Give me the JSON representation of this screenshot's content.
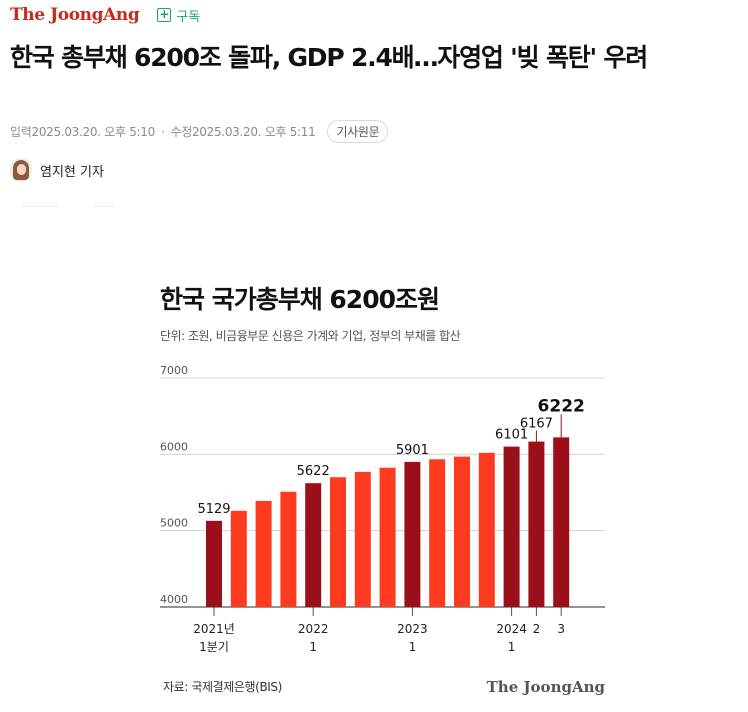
{
  "header": {
    "logo": "The JoongAng",
    "subscribe_label": "구독"
  },
  "article": {
    "title": "한국 총부채 6200조 돌파, GDP 2.4배…자영업 '빚 폭탄' 우려",
    "published": "입력2025.03.20. 오후 5:10",
    "separator": "·",
    "modified": "수정2025.03.20. 오후 5:11",
    "original_button": "기사원문",
    "reporter": "염지현 기자"
  },
  "chart_data": {
    "type": "bar",
    "title": "한국 국가총부채 6200조원",
    "subtitle": "단위: 조원, 비금융부문 신용은 가계와 기업, 정부의 부채를 합산",
    "source": "자료: 국제결제은행(BIS)",
    "logo": "The JoongAng",
    "ylim": [
      4000,
      7000
    ],
    "yticks": [
      "7000",
      "6000",
      "5000",
      "4000"
    ],
    "values": [
      5129,
      5260,
      5390,
      5510,
      5622,
      5700,
      5770,
      5825,
      5901,
      5935,
      5970,
      6020,
      6101,
      6167,
      6222
    ],
    "highlight": [
      true,
      false,
      false,
      false,
      true,
      false,
      false,
      false,
      true,
      false,
      false,
      false,
      true,
      true,
      true
    ],
    "labels": [
      "5129",
      "",
      "",
      "",
      "5622",
      "",
      "",
      "",
      "5901",
      "",
      "",
      "",
      "6101",
      "6167",
      "6222"
    ],
    "xlabels": [
      {
        "index": 0,
        "line1": "2021년",
        "line2": "1분기"
      },
      {
        "index": 4,
        "line1": "2022",
        "line2": "1"
      },
      {
        "index": 8,
        "line1": "2023",
        "line2": "1"
      },
      {
        "index": 12,
        "line1": "2024",
        "line2": "1"
      },
      {
        "index": 13,
        "line1": "2",
        "line2": ""
      },
      {
        "index": 14,
        "line1": "3",
        "line2": ""
      }
    ],
    "colors": {
      "highlight": "#9b0f1a",
      "normal": "#ff3b1f",
      "grid": "#cccccc",
      "axis": "#555555",
      "label": "#111111"
    }
  }
}
